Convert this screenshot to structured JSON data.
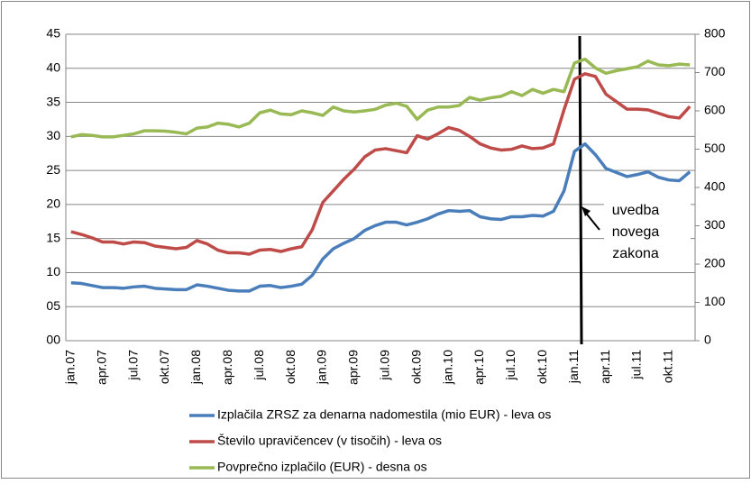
{
  "chart_data": {
    "type": "line",
    "categories": [
      "jan.07",
      null,
      null,
      "apr.07",
      null,
      null,
      "jul.07",
      null,
      null,
      "okt.07",
      null,
      null,
      "jan.08",
      null,
      null,
      "apr.08",
      null,
      null,
      "jul.08",
      null,
      null,
      "okt.08",
      null,
      null,
      "jan.09",
      null,
      null,
      "apr.09",
      null,
      null,
      "jul.09",
      null,
      null,
      "okt.09",
      null,
      null,
      "jan.10",
      null,
      null,
      "apr.10",
      null,
      null,
      "jul.10",
      null,
      null,
      "okt.10",
      null,
      null,
      "jan.11",
      null,
      null,
      "apr.11",
      null,
      null,
      "jul.11",
      null,
      null,
      "okt.11",
      null,
      null
    ],
    "series": [
      {
        "name": "Izplačila ZRSZ za denarna nadomestila (mio EUR) - leva os",
        "color": "#4a7ebb",
        "values": [
          8.5,
          8.4,
          8.1,
          7.8,
          7.8,
          7.7,
          7.9,
          8.0,
          7.7,
          7.6,
          7.5,
          7.5,
          8.2,
          8.0,
          7.7,
          7.4,
          7.3,
          7.3,
          8.0,
          8.1,
          7.8,
          8.0,
          8.3,
          9.6,
          12.0,
          13.5,
          14.3,
          15.0,
          16.2,
          16.9,
          17.4,
          17.4,
          17.0,
          17.4,
          17.9,
          18.6,
          19.1,
          19.0,
          19.1,
          18.2,
          17.9,
          17.8,
          18.2,
          18.2,
          18.4,
          18.3,
          19.0,
          22.0,
          27.8,
          28.9,
          27.3,
          25.3,
          24.7,
          24.1,
          24.4,
          24.8,
          24.0,
          23.6,
          23.5,
          24.8
        ]
      },
      {
        "name": "Število upravičencev (v tisočih) - leva os",
        "color": "#be4b48",
        "values": [
          16.0,
          15.6,
          15.1,
          14.5,
          14.5,
          14.2,
          14.5,
          14.4,
          13.9,
          13.7,
          13.5,
          13.7,
          14.7,
          14.2,
          13.3,
          12.9,
          12.9,
          12.7,
          13.3,
          13.4,
          13.1,
          13.5,
          13.8,
          16.3,
          20.3,
          22.0,
          23.7,
          25.2,
          27.0,
          28.0,
          28.2,
          27.9,
          27.6,
          30.1,
          29.6,
          30.4,
          31.3,
          30.9,
          30.0,
          28.9,
          28.3,
          28.0,
          28.1,
          28.6,
          28.2,
          28.3,
          28.9,
          33.9,
          38.4,
          39.2,
          38.8,
          36.2,
          35.1,
          34.0,
          34.0,
          33.9,
          33.4,
          32.9,
          32.7,
          34.4
        ]
      },
      {
        "name": "Povprečno izplačilo (EUR) - desna os",
        "color": "#98b954",
        "axis": "y2",
        "values": [
          532,
          538,
          536,
          532,
          532,
          536,
          540,
          548,
          548,
          547,
          544,
          540,
          555,
          558,
          568,
          565,
          558,
          568,
          595,
          602,
          592,
          590,
          600,
          595,
          588,
          610,
          600,
          597,
          600,
          604,
          615,
          620,
          612,
          578,
          602,
          610,
          610,
          614,
          635,
          628,
          634,
          638,
          650,
          640,
          656,
          646,
          656,
          650,
          725,
          735,
          712,
          698,
          705,
          710,
          715,
          730,
          720,
          718,
          722,
          720
        ]
      }
    ],
    "ylim": [
      0,
      45
    ],
    "yticks": [
      {
        "value": 0,
        "label": "00"
      },
      {
        "value": 5,
        "label": "05"
      },
      10,
      15,
      20,
      25,
      30,
      35,
      40,
      45
    ],
    "y2lim": [
      0,
      800
    ],
    "y2ticks": [
      0,
      100,
      200,
      300,
      400,
      500,
      600,
      700,
      800
    ],
    "grid": true,
    "annotation": [
      "uvedba",
      "novega",
      "zakona"
    ]
  }
}
